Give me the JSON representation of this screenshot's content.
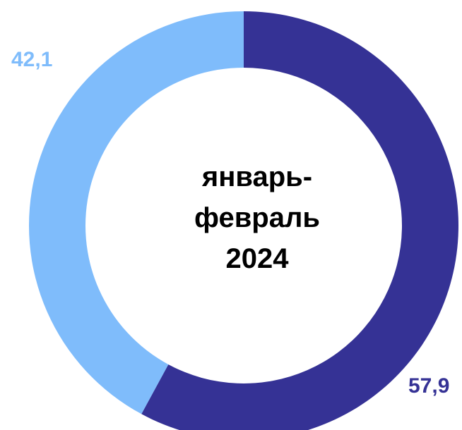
{
  "chart_data": {
    "type": "pie",
    "variant": "donut",
    "title_lines": [
      "январь-",
      "февраль",
      "2024"
    ],
    "slices": [
      {
        "value": 57.9,
        "label": "57,9",
        "color": "#353295"
      },
      {
        "value": 42.1,
        "label": "42,1",
        "color": "#7fbcfb"
      }
    ],
    "start_angle_deg": 0,
    "direction": "clockwise",
    "legend": "none"
  }
}
